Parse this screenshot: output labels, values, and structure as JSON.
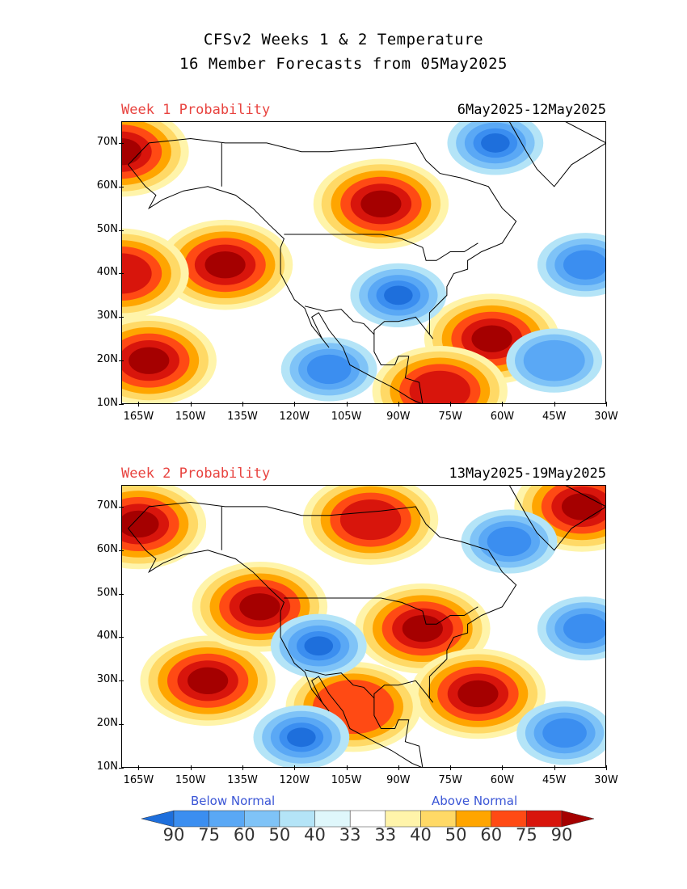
{
  "header": {
    "line1": "CFSv2 Weeks 1 & 2 Temperature",
    "line2": "16 Member Forecasts from 05May2025"
  },
  "panels": [
    {
      "label": "Week 1 Probability",
      "dates": "6May2025-12May2025",
      "anomalies": [
        {
          "category": "above",
          "level": 90,
          "lon": -170,
          "lat": 68
        },
        {
          "category": "above",
          "level": 90,
          "lon": -140,
          "lat": 42
        },
        {
          "category": "above",
          "level": 90,
          "lon": -162,
          "lat": 20
        },
        {
          "category": "above",
          "level": 90,
          "lon": -95,
          "lat": 56
        },
        {
          "category": "above",
          "level": 90,
          "lon": -63,
          "lat": 25
        },
        {
          "category": "above",
          "level": 75,
          "lon": -78,
          "lat": 13
        },
        {
          "category": "above",
          "level": 75,
          "lon": -170,
          "lat": 40
        },
        {
          "category": "below",
          "level": 75,
          "lon": -90,
          "lat": 35
        },
        {
          "category": "below",
          "level": 75,
          "lon": -62,
          "lat": 70
        },
        {
          "category": "below",
          "level": 60,
          "lon": -36,
          "lat": 42
        },
        {
          "category": "below",
          "level": 60,
          "lon": -110,
          "lat": 18
        },
        {
          "category": "below",
          "level": 50,
          "lon": -45,
          "lat": 20
        }
      ]
    },
    {
      "label": "Week 2 Probability",
      "dates": "13May2025-19May2025",
      "anomalies": [
        {
          "category": "above",
          "level": 90,
          "lon": -165,
          "lat": 66
        },
        {
          "category": "above",
          "level": 90,
          "lon": -145,
          "lat": 30
        },
        {
          "category": "above",
          "level": 90,
          "lon": -130,
          "lat": 47
        },
        {
          "category": "above",
          "level": 90,
          "lon": -83,
          "lat": 42
        },
        {
          "category": "above",
          "level": 90,
          "lon": -67,
          "lat": 27
        },
        {
          "category": "above",
          "level": 90,
          "lon": -37,
          "lat": 70
        },
        {
          "category": "above",
          "level": 75,
          "lon": -98,
          "lat": 67
        },
        {
          "category": "above",
          "level": 60,
          "lon": -103,
          "lat": 24
        },
        {
          "category": "below",
          "level": 75,
          "lon": -113,
          "lat": 38
        },
        {
          "category": "below",
          "level": 75,
          "lon": -118,
          "lat": 17
        },
        {
          "category": "below",
          "level": 60,
          "lon": -58,
          "lat": 62
        },
        {
          "category": "below",
          "level": 60,
          "lon": -42,
          "lat": 18
        },
        {
          "category": "below",
          "level": 60,
          "lon": -36,
          "lat": 42
        }
      ]
    }
  ],
  "axes": {
    "lat_labels": [
      "10N",
      "20N",
      "30N",
      "40N",
      "50N",
      "60N",
      "70N"
    ],
    "lat_values": [
      10,
      20,
      30,
      40,
      50,
      60,
      70
    ],
    "lon_labels": [
      "165W",
      "150W",
      "135W",
      "120W",
      "105W",
      "90W",
      "75W",
      "60W",
      "45W",
      "30W"
    ],
    "lon_values": [
      -165,
      -150,
      -135,
      -120,
      -105,
      -90,
      -75,
      -60,
      -45,
      -30
    ],
    "lon_range": [
      -170,
      -30
    ],
    "lat_range": [
      10,
      75
    ]
  },
  "legend": {
    "below_label": "Below Normal",
    "above_label": "Above Normal",
    "numbers": [
      "90",
      "75",
      "60",
      "50",
      "40",
      "33",
      "33",
      "40",
      "50",
      "60",
      "75",
      "90"
    ],
    "colors": [
      "#1e6fdc",
      "#3b8ef0",
      "#5aa8f5",
      "#7fc3f7",
      "#b4e4f7",
      "#dff7fb",
      "#ffffff",
      "#fff4aa",
      "#ffd966",
      "#ffa500",
      "#ff4a14",
      "#d8150c",
      "#a50000"
    ]
  }
}
